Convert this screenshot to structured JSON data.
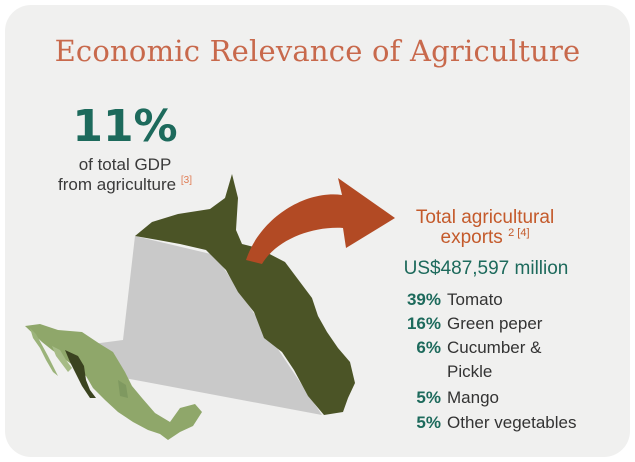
{
  "title": "Economic Relevance of Agriculture",
  "gdp": {
    "value": "11%",
    "line1": "of total GDP",
    "line2": "from agriculture",
    "ref": "[3]"
  },
  "exports": {
    "title_line1": "Total agricultural",
    "title_line2": "exports",
    "title_ref": "2 [4]",
    "total": "US$487,597 million",
    "items": [
      {
        "pct": "39%",
        "name": "Tomato"
      },
      {
        "pct": "16%",
        "name": "Green peper"
      },
      {
        "pct": "6%",
        "name": "Cucumber &"
      },
      {
        "pct": "",
        "name": "Pickle"
      },
      {
        "pct": "5%",
        "name": "Mango"
      },
      {
        "pct": "5%",
        "name": "Other vegetables"
      }
    ]
  },
  "colors": {
    "title": "#c8694c",
    "accent_teal": "#1d6a5c",
    "arrow": "#b24a24",
    "region_dark": "#4b5426",
    "country_light": "#8fa76a"
  },
  "icons": {
    "arrow": "curved-arrow-icon",
    "region_map": "sinaloa-region-map",
    "country_map": "mexico-map"
  }
}
